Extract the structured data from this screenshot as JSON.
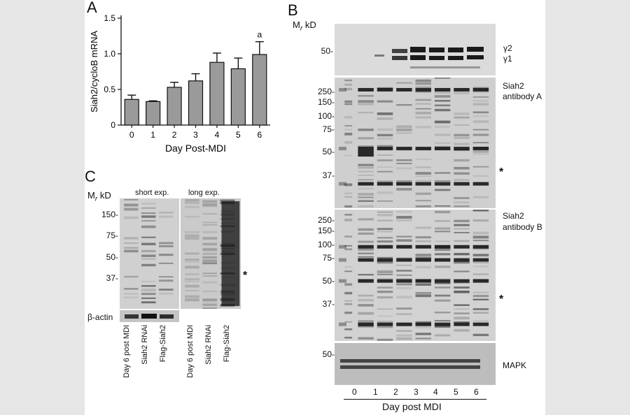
{
  "panel_a": {
    "letter": "A",
    "chart_data": {
      "type": "bar",
      "categories": [
        "0",
        "1",
        "2",
        "3",
        "4",
        "5",
        "6"
      ],
      "values": [
        0.36,
        0.33,
        0.53,
        0.62,
        0.88,
        0.79,
        0.99
      ],
      "errors": [
        0.06,
        0.01,
        0.07,
        0.1,
        0.13,
        0.15,
        0.18
      ],
      "xlabel": "Day Post-MDI",
      "ylabel": "Siah2/cycloB mRNA",
      "ylim": [
        0,
        1.5
      ],
      "yticks": [
        "0",
        "0.5",
        "1.0",
        "1.5"
      ],
      "annotation": "a"
    }
  },
  "panel_b": {
    "letter": "B",
    "mr_label": "M",
    "mr_sub": "r",
    "kd": "kD",
    "blot1": {
      "markers": [
        "50-"
      ],
      "right_labels": [
        "γ2",
        "γ1"
      ]
    },
    "blot2": {
      "markers": [
        "250-",
        "150-",
        "100-",
        "75-",
        "50-",
        "37-"
      ],
      "right_labels": [
        "Siah2",
        "antibody A"
      ],
      "asterisk": "*"
    },
    "blot3": {
      "markers": [
        "250-",
        "150-",
        "100-",
        "75-",
        "50-",
        "37-"
      ],
      "right_labels": [
        "Siah2",
        "antibody B"
      ],
      "asterisk": "*"
    },
    "blot4": {
      "markers": [
        "50-"
      ],
      "right_label": "MAPK"
    },
    "lanes": [
      "0",
      "1",
      "2",
      "3",
      "4",
      "5",
      "6"
    ],
    "xlabel": "Day post MDI"
  },
  "panel_c": {
    "letter": "C",
    "mr_label": "M",
    "mr_sub": "r",
    "kd": "kD",
    "short_exp": "short exp.",
    "long_exp": "long exp.",
    "markers": [
      "150-",
      "75-",
      "50-",
      "37-"
    ],
    "asterisk": "*",
    "actin_label": "β-actin",
    "lane_labels": [
      "Day 6 post MDI",
      "Siah2 RNAi",
      "Flag-Siah2"
    ]
  }
}
